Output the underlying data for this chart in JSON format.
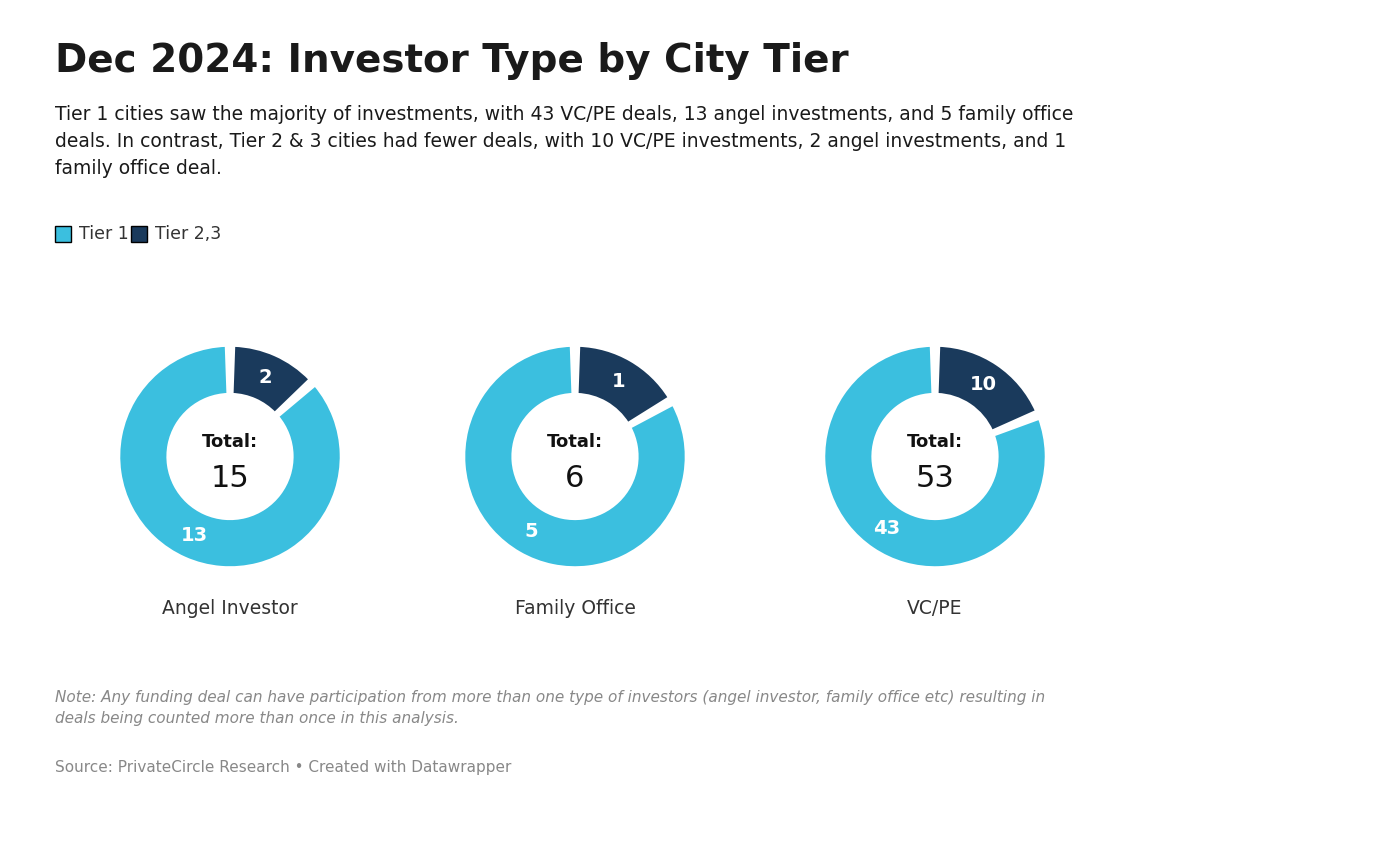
{
  "title": "Dec 2024: Investor Type by City Tier",
  "subtitle_lines": [
    "Tier 1 cities saw the majority of investments, with 43 VC/PE deals, 13 angel investments, and 5 family office deals.",
    "In contrast, Tier 2 & 3 cities had fewer deals, with 10 VC/PE investments, 2 angel investments, and 1",
    "family office deal."
  ],
  "charts": [
    {
      "label": "Angel Investor",
      "tier1": 13,
      "tier23": 2,
      "total": 15
    },
    {
      "label": "Family Office",
      "tier1": 5,
      "tier23": 1,
      "total": 6
    },
    {
      "label": "VC/PE",
      "tier1": 43,
      "tier23": 10,
      "total": 53
    }
  ],
  "tier1_color": "#3bbfdf",
  "tier23_color": "#1a3a5c",
  "legend_labels": [
    "Tier 1",
    "Tier 2,3"
  ],
  "note_line1": "Note: Any funding deal can have participation from more than one type of investors (angel investor, family office etc) resulting in",
  "note_line2": "deals being counted more than once in this analysis.",
  "source": "Source: PrivateCircle Research • Created with Datawrapper",
  "background_color": "#ffffff"
}
